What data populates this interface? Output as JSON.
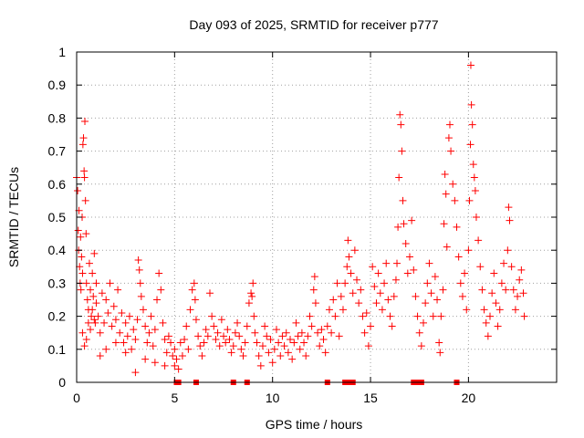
{
  "chart_data": {
    "type": "scatter",
    "title": "Day 093 of 2025, SRMTID for receiver p777",
    "xlabel": "GPS time / hours",
    "ylabel": "SRMTID / TECUs",
    "xlim": [
      0,
      24.5
    ],
    "ylim": [
      0,
      1
    ],
    "x_ticks": [
      0,
      5,
      10,
      15,
      20
    ],
    "x_tick_labels": [
      "0",
      "5",
      "10",
      "15",
      "20"
    ],
    "y_ticks": [
      0,
      0.1,
      0.2,
      0.3,
      0.4,
      0.5,
      0.6,
      0.7,
      0.8,
      0.9,
      1
    ],
    "y_tick_labels": [
      "0",
      "0.1",
      "0.2",
      "0.3",
      "0.4",
      "0.5",
      "0.6",
      "0.7",
      "0.8",
      "0.9",
      "1"
    ],
    "grid": true,
    "marker": "plus",
    "series_color": "#ff0000",
    "series": [
      {
        "name": "SRMTID",
        "points": [
          [
            0.0,
            0.62
          ],
          [
            0.05,
            0.58
          ],
          [
            0.08,
            0.46
          ],
          [
            0.1,
            0.4
          ],
          [
            0.12,
            0.52
          ],
          [
            0.15,
            0.35
          ],
          [
            0.18,
            0.3
          ],
          [
            0.2,
            0.44
          ],
          [
            0.22,
            0.28
          ],
          [
            0.25,
            0.38
          ],
          [
            0.28,
            0.5
          ],
          [
            0.3,
            0.33
          ],
          [
            0.32,
            0.72
          ],
          [
            0.35,
            0.74
          ],
          [
            0.38,
            0.64
          ],
          [
            0.4,
            0.62
          ],
          [
            0.42,
            0.79
          ],
          [
            0.45,
            0.55
          ],
          [
            0.48,
            0.45
          ],
          [
            0.5,
            0.3
          ],
          [
            0.55,
            0.25
          ],
          [
            0.6,
            0.22
          ],
          [
            0.65,
            0.36
          ],
          [
            0.7,
            0.28
          ],
          [
            0.75,
            0.2
          ],
          [
            0.8,
            0.33
          ],
          [
            0.85,
            0.26
          ],
          [
            0.9,
            0.39
          ],
          [
            0.95,
            0.18
          ],
          [
            1.0,
            0.3
          ],
          [
            0.3,
            0.15
          ],
          [
            0.4,
            0.11
          ],
          [
            0.5,
            0.13
          ],
          [
            0.6,
            0.18
          ],
          [
            0.7,
            0.16
          ],
          [
            0.8,
            0.22
          ],
          [
            0.9,
            0.19
          ],
          [
            1.0,
            0.24
          ],
          [
            1.1,
            0.2
          ],
          [
            1.2,
            0.15
          ],
          [
            1.3,
            0.27
          ],
          [
            1.4,
            0.18
          ],
          [
            1.5,
            0.25
          ],
          [
            1.6,
            0.21
          ],
          [
            1.7,
            0.3
          ],
          [
            1.8,
            0.17
          ],
          [
            1.9,
            0.23
          ],
          [
            2.0,
            0.19
          ],
          [
            2.1,
            0.28
          ],
          [
            2.2,
            0.15
          ],
          [
            2.3,
            0.21
          ],
          [
            2.4,
            0.12
          ],
          [
            2.5,
            0.18
          ],
          [
            2.6,
            0.14
          ],
          [
            2.7,
            0.2
          ],
          [
            2.8,
            0.1
          ],
          [
            2.9,
            0.16
          ],
          [
            3.0,
            0.13
          ],
          [
            3.1,
            0.19
          ],
          [
            3.15,
            0.37
          ],
          [
            3.2,
            0.34
          ],
          [
            3.25,
            0.3
          ],
          [
            3.3,
            0.26
          ],
          [
            3.4,
            0.22
          ],
          [
            3.5,
            0.17
          ],
          [
            3.6,
            0.12
          ],
          [
            3.7,
            0.15
          ],
          [
            3.8,
            0.2
          ],
          [
            3.9,
            0.11
          ],
          [
            4.0,
            0.16
          ],
          [
            4.1,
            0.25
          ],
          [
            4.2,
            0.33
          ],
          [
            4.3,
            0.28
          ],
          [
            4.4,
            0.18
          ],
          [
            4.5,
            0.13
          ],
          [
            4.6,
            0.09
          ],
          [
            4.7,
            0.14
          ],
          [
            4.8,
            0.12
          ],
          [
            4.9,
            0.08
          ],
          [
            5.0,
            0.1
          ],
          [
            1.2,
            0.08
          ],
          [
            1.5,
            0.1
          ],
          [
            2.0,
            0.12
          ],
          [
            2.5,
            0.09
          ],
          [
            3.0,
            0.03
          ],
          [
            3.5,
            0.07
          ],
          [
            4.0,
            0.06
          ],
          [
            4.5,
            0.05
          ],
          [
            5.0,
            0.05
          ],
          [
            5.1,
            0.07
          ],
          [
            5.2,
            0.04
          ],
          [
            5.3,
            0.12
          ],
          [
            5.4,
            0.08
          ],
          [
            5.5,
            0.13
          ],
          [
            5.6,
            0.17
          ],
          [
            5.7,
            0.1
          ],
          [
            5.8,
            0.22
          ],
          [
            5.9,
            0.28
          ],
          [
            6.0,
            0.3
          ],
          [
            6.05,
            0.25
          ],
          [
            6.1,
            0.19
          ],
          [
            6.2,
            0.14
          ],
          [
            6.3,
            0.11
          ],
          [
            6.4,
            0.08
          ],
          [
            6.5,
            0.12
          ],
          [
            6.6,
            0.16
          ],
          [
            6.7,
            0.14
          ],
          [
            6.8,
            0.27
          ],
          [
            6.9,
            0.2
          ],
          [
            7.0,
            0.17
          ],
          [
            7.1,
            0.13
          ],
          [
            7.2,
            0.15
          ],
          [
            7.3,
            0.11
          ],
          [
            7.4,
            0.19
          ],
          [
            7.5,
            0.14
          ],
          [
            7.6,
            0.12
          ],
          [
            7.7,
            0.16
          ],
          [
            7.8,
            0.13
          ],
          [
            7.9,
            0.09
          ],
          [
            8.0,
            0.11
          ],
          [
            8.1,
            0.15
          ],
          [
            8.2,
            0.18
          ],
          [
            8.3,
            0.14
          ],
          [
            8.4,
            0.1
          ],
          [
            8.5,
            0.08
          ],
          [
            8.6,
            0.12
          ],
          [
            8.7,
            0.17
          ],
          [
            8.8,
            0.24
          ],
          [
            8.9,
            0.27
          ],
          [
            9.0,
            0.3
          ],
          [
            8.95,
            0.26
          ],
          [
            9.05,
            0.2
          ],
          [
            9.1,
            0.15
          ],
          [
            9.2,
            0.12
          ],
          [
            9.3,
            0.08
          ],
          [
            9.4,
            0.05
          ],
          [
            9.5,
            0.11
          ],
          [
            9.6,
            0.17
          ],
          [
            9.7,
            0.14
          ],
          [
            9.8,
            0.09
          ],
          [
            9.9,
            0.13
          ],
          [
            10.0,
            0.06
          ],
          [
            10.1,
            0.1
          ],
          [
            10.2,
            0.16
          ],
          [
            10.3,
            0.12
          ],
          [
            10.4,
            0.08
          ],
          [
            10.5,
            0.14
          ],
          [
            10.6,
            0.11
          ],
          [
            10.7,
            0.15
          ],
          [
            10.8,
            0.09
          ],
          [
            10.9,
            0.13
          ],
          [
            11.0,
            0.07
          ],
          [
            11.1,
            0.12
          ],
          [
            11.2,
            0.18
          ],
          [
            11.3,
            0.14
          ],
          [
            11.4,
            0.1
          ],
          [
            11.5,
            0.15
          ],
          [
            11.6,
            0.12
          ],
          [
            11.7,
            0.08
          ],
          [
            11.8,
            0.14
          ],
          [
            11.9,
            0.2
          ],
          [
            12.0,
            0.17
          ],
          [
            12.1,
            0.28
          ],
          [
            12.15,
            0.32
          ],
          [
            12.2,
            0.24
          ],
          [
            12.3,
            0.15
          ],
          [
            12.4,
            0.11
          ],
          [
            12.5,
            0.16
          ],
          [
            12.6,
            0.13
          ],
          [
            12.7,
            0.09
          ],
          [
            12.8,
            0.17
          ],
          [
            12.9,
            0.22
          ],
          [
            13.0,
            0.15
          ],
          [
            13.1,
            0.25
          ],
          [
            13.2,
            0.2
          ],
          [
            13.3,
            0.3
          ],
          [
            13.4,
            0.14
          ],
          [
            13.5,
            0.26
          ],
          [
            13.6,
            0.22
          ],
          [
            13.7,
            0.3
          ],
          [
            13.8,
            0.35
          ],
          [
            13.85,
            0.43
          ],
          [
            13.9,
            0.38
          ],
          [
            14.0,
            0.33
          ],
          [
            14.1,
            0.27
          ],
          [
            14.2,
            0.4
          ],
          [
            14.3,
            0.31
          ],
          [
            14.4,
            0.24
          ],
          [
            14.5,
            0.28
          ],
          [
            14.6,
            0.2
          ],
          [
            14.7,
            0.15
          ],
          [
            14.8,
            0.21
          ],
          [
            14.9,
            0.11
          ],
          [
            15.0,
            0.17
          ],
          [
            15.1,
            0.35
          ],
          [
            15.2,
            0.29
          ],
          [
            15.3,
            0.24
          ],
          [
            15.4,
            0.33
          ],
          [
            15.5,
            0.27
          ],
          [
            15.6,
            0.22
          ],
          [
            15.7,
            0.3
          ],
          [
            15.8,
            0.36
          ],
          [
            15.9,
            0.25
          ],
          [
            16.0,
            0.2
          ],
          [
            16.1,
            0.17
          ],
          [
            16.2,
            0.26
          ],
          [
            16.3,
            0.31
          ],
          [
            16.35,
            0.36
          ],
          [
            16.4,
            0.47
          ],
          [
            16.45,
            0.62
          ],
          [
            16.5,
            0.81
          ],
          [
            16.55,
            0.78
          ],
          [
            16.6,
            0.7
          ],
          [
            16.65,
            0.55
          ],
          [
            16.7,
            0.48
          ],
          [
            16.8,
            0.42
          ],
          [
            16.9,
            0.33
          ],
          [
            17.0,
            0.38
          ],
          [
            17.1,
            0.49
          ],
          [
            17.2,
            0.34
          ],
          [
            17.3,
            0.26
          ],
          [
            17.4,
            0.2
          ],
          [
            17.5,
            0.15
          ],
          [
            17.6,
            0.11
          ],
          [
            17.7,
            0.18
          ],
          [
            17.8,
            0.24
          ],
          [
            17.9,
            0.3
          ],
          [
            18.0,
            0.36
          ],
          [
            18.1,
            0.27
          ],
          [
            18.2,
            0.2
          ],
          [
            18.3,
            0.32
          ],
          [
            18.4,
            0.25
          ],
          [
            18.5,
            0.12
          ],
          [
            18.55,
            0.09
          ],
          [
            18.6,
            0.2
          ],
          [
            18.7,
            0.28
          ],
          [
            18.75,
            0.48
          ],
          [
            18.8,
            0.63
          ],
          [
            18.85,
            0.57
          ],
          [
            18.9,
            0.41
          ],
          [
            19.0,
            0.74
          ],
          [
            19.05,
            0.78
          ],
          [
            19.1,
            0.7
          ],
          [
            19.2,
            0.6
          ],
          [
            19.3,
            0.55
          ],
          [
            19.4,
            0.47
          ],
          [
            19.5,
            0.38
          ],
          [
            19.6,
            0.3
          ],
          [
            19.7,
            0.26
          ],
          [
            19.8,
            0.33
          ],
          [
            19.9,
            0.22
          ],
          [
            20.0,
            0.4
          ],
          [
            20.05,
            0.55
          ],
          [
            20.1,
            0.72
          ],
          [
            20.12,
            0.96
          ],
          [
            20.15,
            0.84
          ],
          [
            20.2,
            0.78
          ],
          [
            20.25,
            0.66
          ],
          [
            20.3,
            0.62
          ],
          [
            20.35,
            0.58
          ],
          [
            20.4,
            0.5
          ],
          [
            20.5,
            0.43
          ],
          [
            20.6,
            0.35
          ],
          [
            20.7,
            0.28
          ],
          [
            20.8,
            0.22
          ],
          [
            20.9,
            0.18
          ],
          [
            21.0,
            0.14
          ],
          [
            21.1,
            0.2
          ],
          [
            21.2,
            0.27
          ],
          [
            21.3,
            0.33
          ],
          [
            21.4,
            0.24
          ],
          [
            21.5,
            0.17
          ],
          [
            21.6,
            0.22
          ],
          [
            21.7,
            0.3
          ],
          [
            21.8,
            0.36
          ],
          [
            21.9,
            0.28
          ],
          [
            22.0,
            0.4
          ],
          [
            22.05,
            0.53
          ],
          [
            22.1,
            0.49
          ],
          [
            22.2,
            0.35
          ],
          [
            22.3,
            0.28
          ],
          [
            22.4,
            0.22
          ],
          [
            22.5,
            0.26
          ],
          [
            22.6,
            0.31
          ],
          [
            22.7,
            0.34
          ],
          [
            22.8,
            0.27
          ],
          [
            22.85,
            0.2
          ]
        ]
      }
    ],
    "baseline_markers_x": [
      5.1,
      5.2,
      6.1,
      8.0,
      8.7,
      12.8,
      13.7,
      13.85,
      14.1,
      17.2,
      17.4,
      17.6,
      19.4
    ],
    "baseline_marker_value": 0
  }
}
